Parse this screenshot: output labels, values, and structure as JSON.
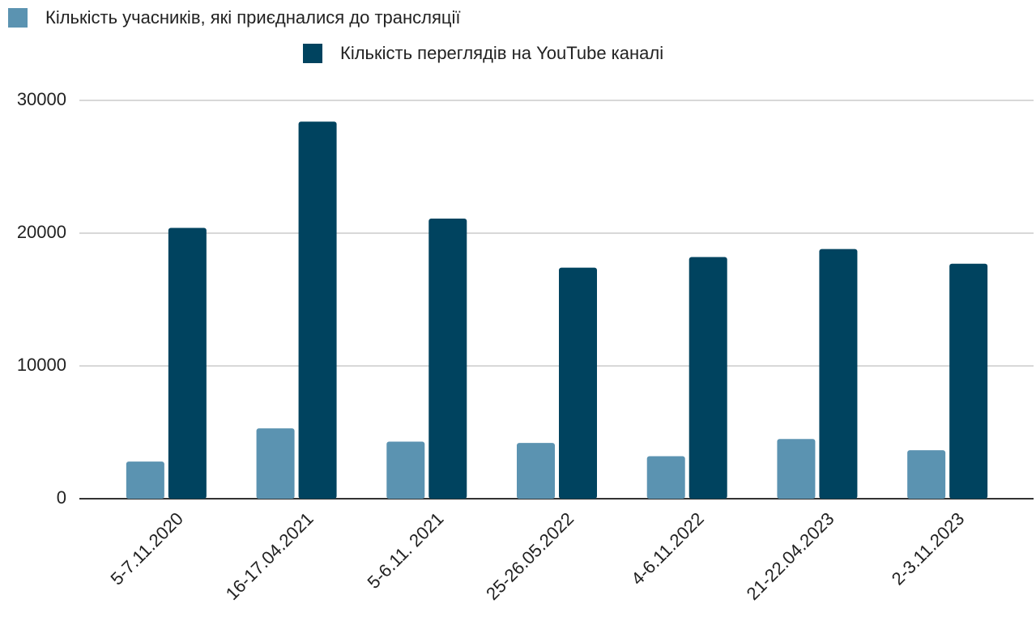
{
  "chart_data": {
    "type": "bar",
    "categories": [
      "5-7.11.2020",
      "16-17.04.2021",
      "5-6.11. 2021",
      "25-26.05.2022",
      "4-6.11.2022",
      "21-22.04.2023",
      "2-3.11.2023"
    ],
    "series": [
      {
        "name": "Кількість учасників, які приєдналися до трансляції",
        "color": "#5b93b1",
        "values": [
          2800,
          5300,
          4300,
          4200,
          3200,
          4500,
          3650
        ]
      },
      {
        "name": "Кількість переглядів на YouTube каналі",
        "color": "#00435f",
        "values": [
          20400,
          28400,
          21100,
          17400,
          18200,
          18800,
          17700
        ]
      }
    ],
    "ylim": [
      0,
      30000
    ],
    "yticks": [
      0,
      10000,
      20000,
      30000
    ],
    "grid": true
  }
}
